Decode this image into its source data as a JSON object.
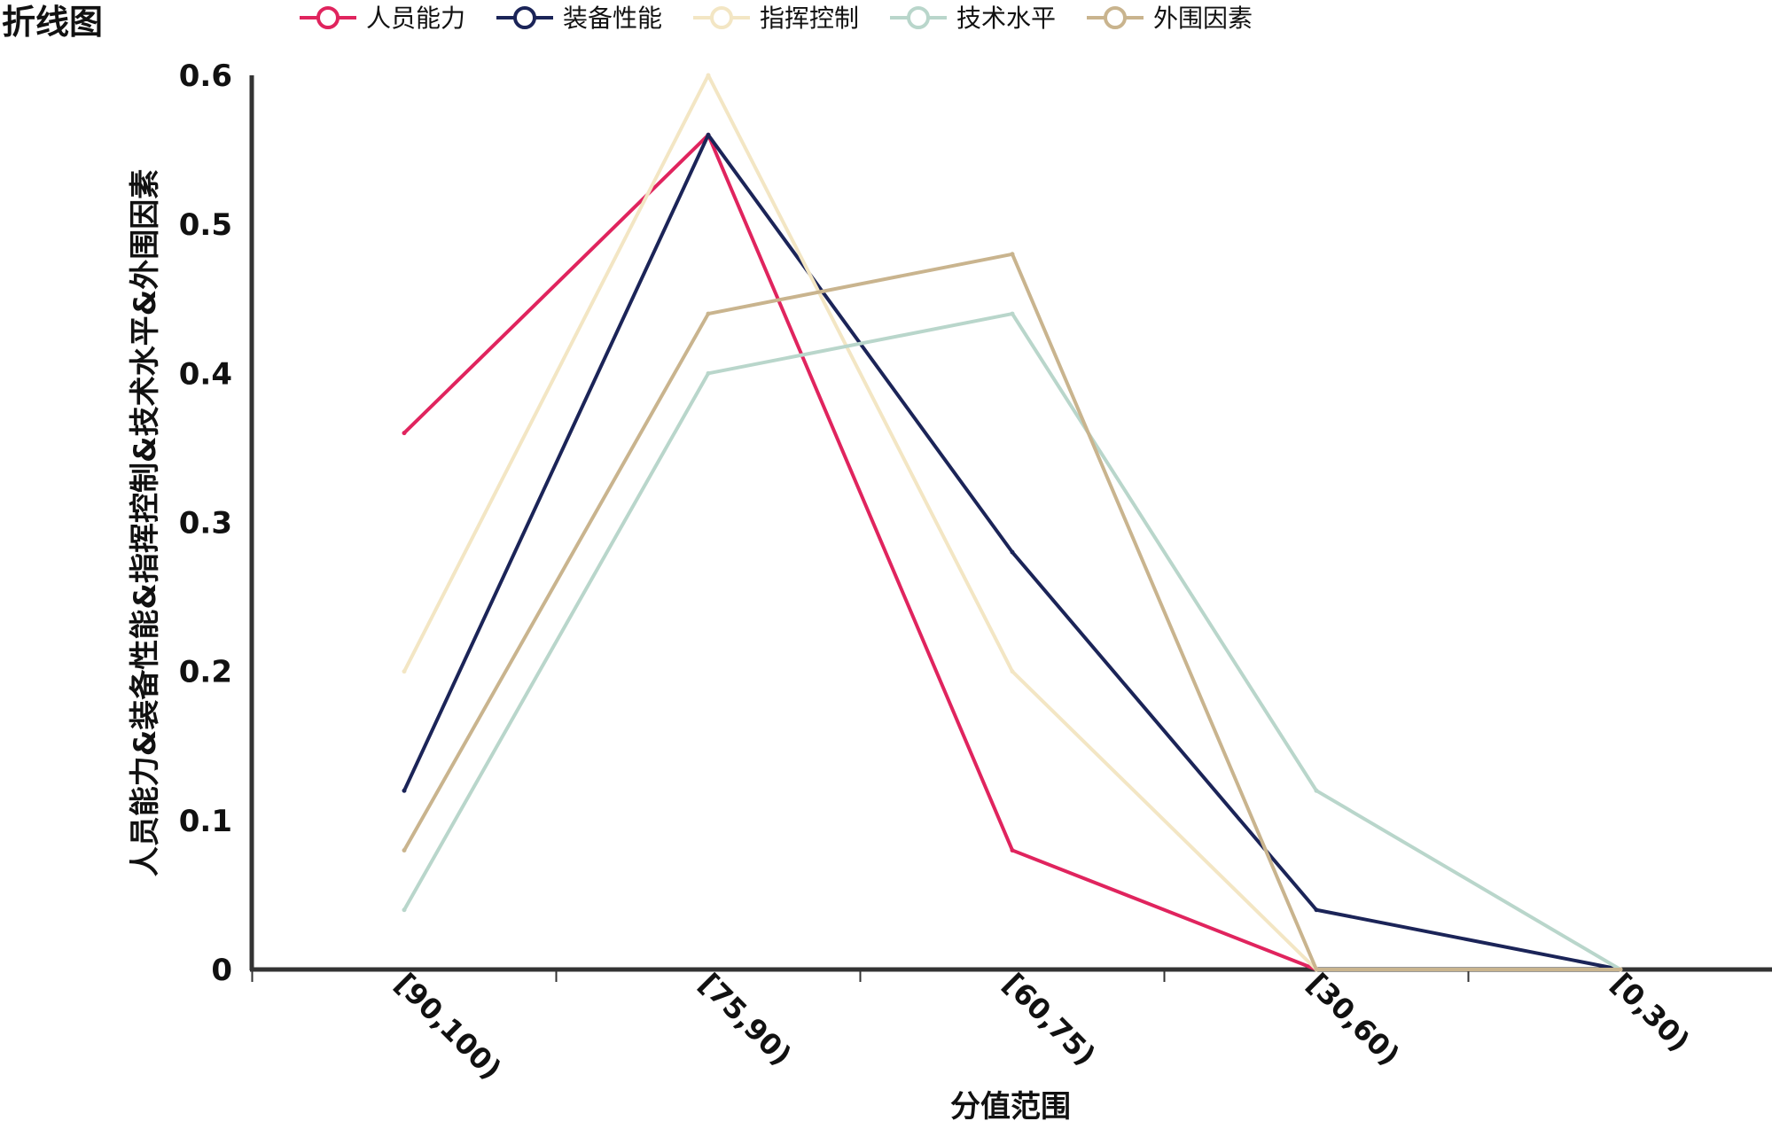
{
  "chart_data": {
    "type": "line",
    "title": "折线图",
    "xlabel": "分值范围",
    "ylabel": "人员能力&装备性能&指挥控制&技术水平&外围因素",
    "categories": [
      "[90,100)",
      "[75,90)",
      "[60,75)",
      "[30,60)",
      "[0,30)"
    ],
    "ylim": [
      0,
      0.6
    ],
    "yticks": [
      "0",
      "0.1",
      "0.2",
      "0.3",
      "0.4",
      "0.5",
      "0.6"
    ],
    "grid": false,
    "legend_position": "top",
    "series": [
      {
        "name": "人员能力",
        "color": "#e0245e",
        "values": [
          0.36,
          0.56,
          0.08,
          0,
          0
        ]
      },
      {
        "name": "装备性能",
        "color": "#1b2458",
        "values": [
          0.12,
          0.56,
          0.28,
          0.04,
          0
        ]
      },
      {
        "name": "指挥控制",
        "color": "#f3e6c4",
        "values": [
          0.2,
          0.6,
          0.2,
          0,
          0
        ]
      },
      {
        "name": "技术水平",
        "color": "#b9d6cb",
        "values": [
          0.04,
          0.4,
          0.44,
          0.12,
          0
        ]
      },
      {
        "name": "外围因素",
        "color": "#c9b48e",
        "values": [
          0.08,
          0.44,
          0.48,
          0,
          0
        ]
      }
    ]
  }
}
